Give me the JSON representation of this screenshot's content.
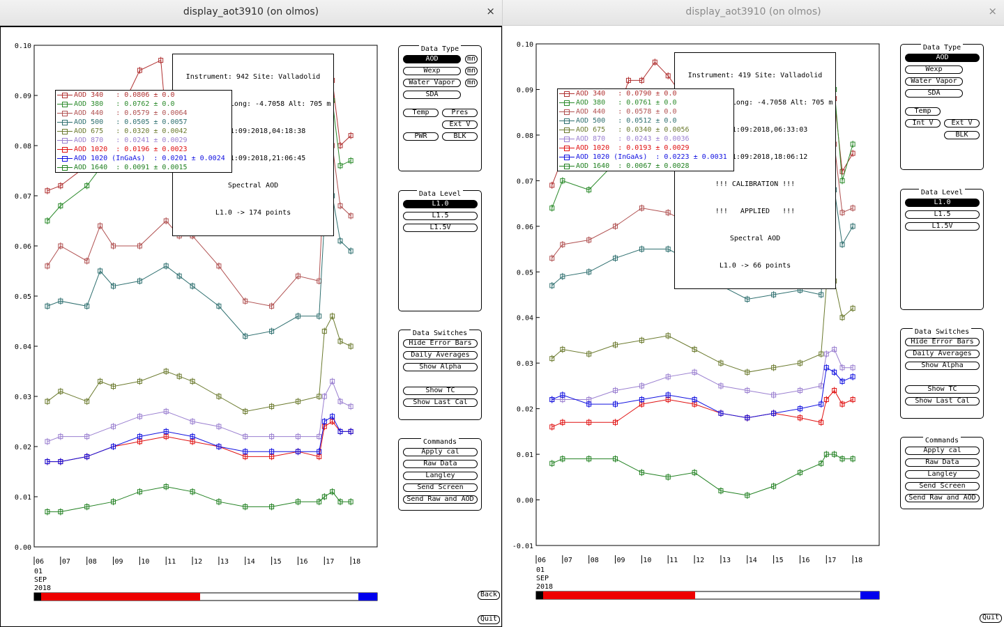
{
  "windows": [
    {
      "title": "display_aot3910 (on olmos)",
      "close_icon": "×",
      "info_lines": [
        "Instrument: 942 Site: Valladolid",
        "Lat: 41.6636 Long: -4.7058 Alt: 705 m",
        "Since 01:09:2018,04:18:38",
        "Until 01:09:2018,21:06:45",
        "Spectral AOD",
        "L1.0 -> 174 points"
      ],
      "legend": [
        {
          "text": "AOD 340   : 0.0806 ± 0.0",
          "color": "#b03030"
        },
        {
          "text": "AOD 380   : 0.0762 ± 0.0",
          "color": "#2a8a2a"
        },
        {
          "text": "AOD 440   : 0.0579 ± 0.0064",
          "color": "#b05050"
        },
        {
          "text": "AOD 500   : 0.0505 ± 0.0057",
          "color": "#2e6f6f"
        },
        {
          "text": "AOD 675   : 0.0320 ± 0.0042",
          "color": "#6b7a2e"
        },
        {
          "text": "AOD 870   : 0.0241 ± 0.0029",
          "color": "#9a7fd0"
        },
        {
          "text": "AOD 1020  : 0.0196 ± 0.0023",
          "color": "#e01010"
        },
        {
          "text": "AOD 1020 (InGaAs)  : 0.0201 ± 0.0024",
          "color": "#1010e0"
        },
        {
          "text": "AOD 1640  : 0.0091 ± 0.0015",
          "color": "#208020"
        }
      ],
      "y_ticks": [
        "0.10",
        "0.09",
        "0.08",
        "0.07",
        "0.06",
        "0.05",
        "0.04",
        "0.03",
        "0.02",
        "0.01",
        "0.00"
      ],
      "x_ticks": [
        "06",
        "07",
        "08",
        "09",
        "10",
        "11",
        "12",
        "13",
        "14",
        "15",
        "16",
        "17",
        "18"
      ],
      "date_labels": [
        "01",
        "SEP",
        "2018"
      ],
      "back_label": "Back",
      "quit_label": "Quit"
    },
    {
      "title": "display_aot3910 (on olmos)",
      "close_icon": "×",
      "info_lines": [
        "Instrument: 419 Site: Valladolid",
        "Lat: 41.6636 Long: -4.7058 Alt: 705 m",
        "Since 01:09:2018,06:33:03",
        "Until 01:09:2018,18:06:12",
        "!!! CALIBRATION !!!",
        "!!!   APPLIED   !!!",
        "Spectral AOD",
        "L1.0 -> 66 points"
      ],
      "legend": [
        {
          "text": "AOD 340   : 0.0790 ± 0.0",
          "color": "#b03030"
        },
        {
          "text": "AOD 380   : 0.0761 ± 0.0",
          "color": "#2a8a2a"
        },
        {
          "text": "AOD 440   : 0.0578 ± 0.0",
          "color": "#b05050"
        },
        {
          "text": "AOD 500   : 0.0512 ± 0.0",
          "color": "#2e6f6f"
        },
        {
          "text": "AOD 675   : 0.0340 ± 0.0056",
          "color": "#6b7a2e"
        },
        {
          "text": "AOD 870   : 0.0243 ± 0.0036",
          "color": "#9a7fd0"
        },
        {
          "text": "AOD 1020  : 0.0193 ± 0.0029",
          "color": "#e01010"
        },
        {
          "text": "AOD 1020 (InGaAs)  : 0.0223 ± 0.0031",
          "color": "#1010e0"
        },
        {
          "text": "AOD 1640  : 0.0067 ± 0.0028",
          "color": "#208020"
        }
      ],
      "y_ticks": [
        "0.10",
        "0.09",
        "0.08",
        "0.07",
        "0.06",
        "0.05",
        "0.04",
        "0.03",
        "0.02",
        "0.01",
        "0.00",
        "-0.01"
      ],
      "x_ticks": [
        "06",
        "07",
        "08",
        "09",
        "10",
        "11",
        "12",
        "13",
        "14",
        "15",
        "16",
        "17",
        "18"
      ],
      "date_labels": [
        "01",
        "SEP",
        "2018"
      ],
      "quit_label": "Quit"
    }
  ],
  "panel": {
    "data_type": {
      "title": "Data Type",
      "aod": "AOD",
      "mn": "mn",
      "wexp": "Wexp",
      "water_vapor": "Water Vapor",
      "sda": "SDA",
      "temp": "Temp",
      "pres": "Pres",
      "ext_v": "Ext V",
      "int_v": "Int V",
      "pwr": "PWR",
      "blk": "BLK"
    },
    "data_level": {
      "title": "Data Level",
      "l10": "L1.0",
      "l15": "L1.5",
      "l15v": "L1.5V"
    },
    "data_switches": {
      "title": "Data Switches",
      "hide_error_bars": "Hide Error Bars",
      "daily_averages": "Daily Averages",
      "show_alpha": "Show Alpha",
      "show_tc": "Show TC",
      "show_last_cal": "Show Last Cal"
    },
    "commands": {
      "title": "Commands",
      "apply_cal": "Apply cal",
      "raw_data": "Raw Data",
      "langley": "Langley",
      "send_screen": "Send Screen",
      "send_raw_and_aod": "Send Raw and AOD"
    }
  },
  "chart_data": [
    {
      "type": "line",
      "ylim": [
        0,
        0.1
      ],
      "x_unit": "hour (UTC), 01 SEP 2018",
      "xlim": [
        6,
        19
      ],
      "series": [
        {
          "name": "AOD 340",
          "color": "#b03030",
          "x": [
            6.5,
            7,
            8,
            9,
            10,
            10.8,
            11,
            11.5,
            12,
            13,
            14,
            15,
            16,
            16.8,
            17,
            17.3,
            17.6,
            18
          ],
          "y": [
            0.071,
            0.072,
            0.076,
            0.084,
            0.095,
            0.097,
            0.085,
            0.088,
            0.083,
            0.079,
            0.076,
            0.075,
            0.075,
            0.07,
            0.085,
            0.093,
            0.08,
            0.082
          ]
        },
        {
          "name": "AOD 380",
          "color": "#2a8a2a",
          "x": [
            6.5,
            7,
            8,
            9,
            10,
            11,
            12,
            13,
            14,
            15,
            16,
            16.8,
            17,
            17.3,
            17.6,
            18
          ],
          "y": [
            0.065,
            0.068,
            0.072,
            0.079,
            0.09,
            0.084,
            0.079,
            0.076,
            0.072,
            0.071,
            0.071,
            0.066,
            0.081,
            0.089,
            0.076,
            0.077
          ]
        },
        {
          "name": "AOD 440",
          "color": "#b05050",
          "x": [
            6.5,
            7,
            8,
            8.5,
            9,
            10,
            11,
            11.5,
            12,
            13,
            14,
            15,
            16,
            16.8,
            17,
            17.3,
            17.6,
            18
          ],
          "y": [
            0.056,
            0.06,
            0.057,
            0.064,
            0.06,
            0.06,
            0.065,
            0.062,
            0.062,
            0.056,
            0.049,
            0.048,
            0.054,
            0.053,
            0.075,
            0.08,
            0.068,
            0.066
          ]
        },
        {
          "name": "AOD 500",
          "color": "#2e6f6f",
          "x": [
            6.5,
            7,
            8,
            8.5,
            9,
            10,
            11,
            11.5,
            12,
            13,
            14,
            15,
            16,
            16.8,
            17,
            17.3,
            17.6,
            18
          ],
          "y": [
            0.048,
            0.049,
            0.048,
            0.055,
            0.052,
            0.053,
            0.056,
            0.054,
            0.052,
            0.048,
            0.042,
            0.043,
            0.046,
            0.046,
            0.065,
            0.07,
            0.061,
            0.059
          ]
        },
        {
          "name": "AOD 675",
          "color": "#6b7a2e",
          "x": [
            6.5,
            7,
            8,
            8.5,
            9,
            10,
            11,
            11.5,
            12,
            13,
            14,
            15,
            16,
            16.8,
            17,
            17.3,
            17.6,
            18
          ],
          "y": [
            0.029,
            0.031,
            0.029,
            0.033,
            0.032,
            0.033,
            0.035,
            0.034,
            0.033,
            0.03,
            0.027,
            0.028,
            0.029,
            0.03,
            0.043,
            0.046,
            0.041,
            0.04
          ]
        },
        {
          "name": "AOD 870",
          "color": "#9a7fd0",
          "x": [
            6.5,
            7,
            8,
            9,
            10,
            11,
            12,
            13,
            14,
            15,
            16,
            16.8,
            17,
            17.3,
            17.6,
            18
          ],
          "y": [
            0.021,
            0.022,
            0.022,
            0.024,
            0.026,
            0.027,
            0.025,
            0.024,
            0.022,
            0.022,
            0.022,
            0.022,
            0.03,
            0.033,
            0.029,
            0.028
          ]
        },
        {
          "name": "AOD 1020",
          "color": "#e01010",
          "x": [
            6.5,
            7,
            8,
            9,
            10,
            11,
            12,
            13,
            14,
            15,
            16,
            16.8,
            17,
            17.3,
            17.6,
            18
          ],
          "y": [
            0.017,
            0.017,
            0.018,
            0.02,
            0.021,
            0.022,
            0.021,
            0.02,
            0.018,
            0.018,
            0.019,
            0.018,
            0.024,
            0.025,
            0.023,
            0.023
          ]
        },
        {
          "name": "AOD 1020 (InGaAs)",
          "color": "#1010e0",
          "x": [
            6.5,
            7,
            8,
            9,
            10,
            11,
            12,
            13,
            14,
            15,
            16,
            16.8,
            17,
            17.3,
            17.6,
            18
          ],
          "y": [
            0.017,
            0.017,
            0.018,
            0.02,
            0.022,
            0.023,
            0.022,
            0.02,
            0.019,
            0.019,
            0.019,
            0.019,
            0.025,
            0.026,
            0.023,
            0.023
          ]
        },
        {
          "name": "AOD 1640",
          "color": "#208020",
          "x": [
            6.5,
            7,
            8,
            9,
            10,
            11,
            12,
            13,
            14,
            15,
            16,
            16.8,
            17,
            17.3,
            17.6,
            18
          ],
          "y": [
            0.007,
            0.007,
            0.008,
            0.009,
            0.011,
            0.012,
            0.011,
            0.009,
            0.008,
            0.008,
            0.009,
            0.009,
            0.01,
            0.011,
            0.009,
            0.009
          ]
        }
      ]
    },
    {
      "type": "line",
      "ylim": [
        -0.01,
        0.1
      ],
      "x_unit": "hour (UTC), 01 SEP 2018",
      "xlim": [
        6,
        19
      ],
      "series": [
        {
          "name": "AOD 340",
          "color": "#b03030",
          "x": [
            6.6,
            7,
            8,
            9,
            9.5,
            10,
            10.5,
            11,
            11.5,
            12,
            13,
            14,
            15,
            16,
            16.8,
            17,
            17.3,
            17.6,
            18
          ],
          "y": [
            0.069,
            0.075,
            0.077,
            0.083,
            0.092,
            0.092,
            0.096,
            0.093,
            0.089,
            0.083,
            0.077,
            0.075,
            0.074,
            0.072,
            0.071,
            0.084,
            0.088,
            0.072,
            0.076
          ]
        },
        {
          "name": "AOD 380",
          "color": "#2a8a2a",
          "x": [
            6.6,
            7,
            8,
            9,
            10,
            11,
            12,
            13,
            14,
            15,
            16,
            16.8,
            17,
            17.3,
            17.6,
            18
          ],
          "y": [
            0.064,
            0.07,
            0.068,
            0.074,
            0.081,
            0.08,
            0.077,
            0.072,
            0.07,
            0.07,
            0.07,
            0.067,
            0.083,
            0.09,
            0.07,
            0.078
          ]
        },
        {
          "name": "AOD 440",
          "color": "#b05050",
          "x": [
            6.6,
            7,
            8,
            9,
            10,
            11,
            12,
            13,
            14,
            15,
            16,
            16.8,
            17,
            17.3,
            17.6,
            18
          ],
          "y": [
            0.053,
            0.056,
            0.057,
            0.06,
            0.064,
            0.063,
            0.06,
            0.056,
            0.05,
            0.052,
            0.052,
            0.051,
            0.07,
            0.078,
            0.063,
            0.064
          ]
        },
        {
          "name": "AOD 500",
          "color": "#2e6f6f",
          "x": [
            6.6,
            7,
            8,
            9,
            10,
            11,
            12,
            13,
            14,
            15,
            16,
            16.8,
            17,
            17.3,
            17.6,
            18
          ],
          "y": [
            0.047,
            0.049,
            0.05,
            0.053,
            0.055,
            0.055,
            0.052,
            0.047,
            0.044,
            0.045,
            0.046,
            0.045,
            0.062,
            0.068,
            0.056,
            0.06
          ]
        },
        {
          "name": "AOD 675",
          "color": "#6b7a2e",
          "x": [
            6.6,
            7,
            8,
            9,
            10,
            11,
            12,
            13,
            14,
            15,
            16,
            16.8,
            17,
            17.3,
            17.6,
            18
          ],
          "y": [
            0.031,
            0.033,
            0.032,
            0.034,
            0.035,
            0.036,
            0.033,
            0.03,
            0.028,
            0.029,
            0.03,
            0.032,
            0.047,
            0.048,
            0.04,
            0.042
          ]
        },
        {
          "name": "AOD 870",
          "color": "#9a7fd0",
          "x": [
            6.6,
            7,
            8,
            9,
            10,
            11,
            12,
            13,
            14,
            15,
            16,
            16.8,
            17,
            17.3,
            17.6,
            18
          ],
          "y": [
            0.022,
            0.022,
            0.022,
            0.024,
            0.025,
            0.027,
            0.028,
            0.025,
            0.024,
            0.023,
            0.024,
            0.025,
            0.032,
            0.033,
            0.029,
            0.029
          ]
        },
        {
          "name": "AOD 1020",
          "color": "#e01010",
          "x": [
            6.6,
            7,
            8,
            9,
            10,
            11,
            12,
            13,
            14,
            15,
            16,
            16.8,
            17,
            17.3,
            17.6,
            18
          ],
          "y": [
            0.016,
            0.017,
            0.017,
            0.017,
            0.021,
            0.022,
            0.021,
            0.019,
            0.018,
            0.019,
            0.018,
            0.017,
            0.022,
            0.024,
            0.021,
            0.022
          ]
        },
        {
          "name": "AOD 1020 (InGaAs)",
          "color": "#1010e0",
          "x": [
            6.6,
            7,
            8,
            9,
            10,
            11,
            12,
            13,
            14,
            15,
            16,
            16.8,
            17,
            17.3,
            17.6,
            18
          ],
          "y": [
            0.022,
            0.023,
            0.021,
            0.021,
            0.022,
            0.023,
            0.022,
            0.019,
            0.018,
            0.019,
            0.02,
            0.021,
            0.029,
            0.028,
            0.026,
            0.027
          ]
        },
        {
          "name": "AOD 1640",
          "color": "#208020",
          "x": [
            6.6,
            7,
            8,
            9,
            10,
            11,
            12,
            13,
            14,
            15,
            16,
            16.8,
            17,
            17.3,
            17.6,
            18
          ],
          "y": [
            0.008,
            0.009,
            0.009,
            0.009,
            0.006,
            0.005,
            0.006,
            0.002,
            0.001,
            0.003,
            0.006,
            0.008,
            0.01,
            0.01,
            0.009,
            0.009
          ]
        }
      ]
    }
  ]
}
